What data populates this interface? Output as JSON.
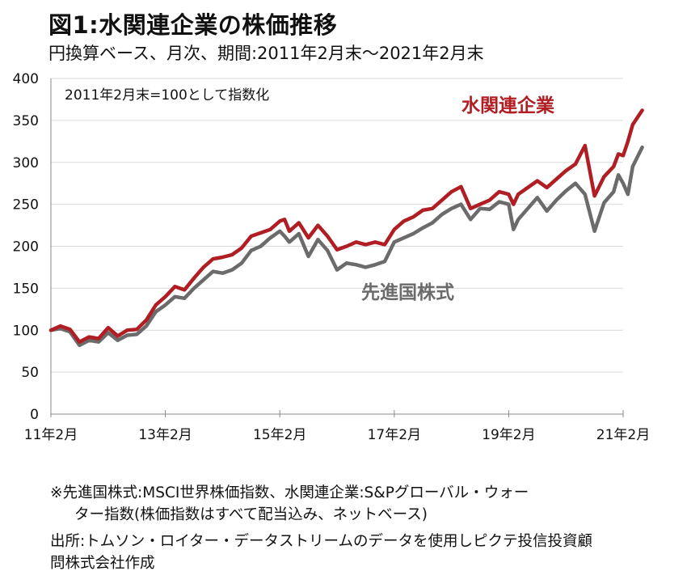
{
  "header": {
    "title": "図1:水関連企業の株価推移",
    "subtitle": "円換算ベース、月次、期間:2011年2月末～2021年2月末"
  },
  "chart_data": {
    "type": "line",
    "annotation": "2011年2月末=100として指数化",
    "ylim": [
      0,
      400
    ],
    "y_ticks": [
      "0",
      "50",
      "100",
      "150",
      "200",
      "250",
      "300",
      "350",
      "400"
    ],
    "x_range": [
      0,
      120
    ],
    "x_ticks": [
      {
        "month": 0,
        "label": "11年2月"
      },
      {
        "month": 24,
        "label": "13年2月"
      },
      {
        "month": 48,
        "label": "15年2月"
      },
      {
        "month": 72,
        "label": "17年2月"
      },
      {
        "month": 96,
        "label": "19年2月"
      },
      {
        "month": 120,
        "label": "21年2月"
      }
    ],
    "grid": "horizontal",
    "series": [
      {
        "name": "水関連企業",
        "color": "#b01e23",
        "points": [
          [
            0,
            100
          ],
          [
            2,
            105
          ],
          [
            4,
            101
          ],
          [
            6,
            86
          ],
          [
            8,
            92
          ],
          [
            10,
            90
          ],
          [
            12,
            103
          ],
          [
            14,
            93
          ],
          [
            16,
            100
          ],
          [
            18,
            101
          ],
          [
            20,
            112
          ],
          [
            22,
            130
          ],
          [
            24,
            140
          ],
          [
            26,
            152
          ],
          [
            28,
            148
          ],
          [
            30,
            162
          ],
          [
            32,
            175
          ],
          [
            34,
            185
          ],
          [
            36,
            187
          ],
          [
            38,
            190
          ],
          [
            40,
            198
          ],
          [
            42,
            212
          ],
          [
            44,
            216
          ],
          [
            46,
            220
          ],
          [
            48,
            230
          ],
          [
            49,
            232
          ],
          [
            50,
            218
          ],
          [
            52,
            228
          ],
          [
            54,
            210
          ],
          [
            56,
            225
          ],
          [
            58,
            212
          ],
          [
            60,
            196
          ],
          [
            62,
            200
          ],
          [
            64,
            205
          ],
          [
            66,
            202
          ],
          [
            68,
            205
          ],
          [
            70,
            202
          ],
          [
            72,
            220
          ],
          [
            74,
            230
          ],
          [
            76,
            235
          ],
          [
            78,
            243
          ],
          [
            80,
            245
          ],
          [
            82,
            255
          ],
          [
            84,
            265
          ],
          [
            86,
            271
          ],
          [
            88,
            245
          ],
          [
            90,
            250
          ],
          [
            92,
            255
          ],
          [
            94,
            265
          ],
          [
            96,
            262
          ],
          [
            97,
            250
          ],
          [
            98,
            262
          ],
          [
            100,
            270
          ],
          [
            102,
            278
          ],
          [
            104,
            270
          ],
          [
            106,
            280
          ],
          [
            108,
            290
          ],
          [
            110,
            298
          ],
          [
            112,
            320
          ],
          [
            114,
            260
          ],
          [
            116,
            283
          ],
          [
            118,
            295
          ],
          [
            119,
            310
          ],
          [
            120,
            308
          ],
          [
            121,
            325
          ],
          [
            122,
            345
          ],
          [
            124,
            362
          ]
        ]
      },
      {
        "name": "先進国株式",
        "color": "#6b6b6b",
        "points": [
          [
            0,
            100
          ],
          [
            2,
            102
          ],
          [
            4,
            98
          ],
          [
            6,
            82
          ],
          [
            8,
            88
          ],
          [
            10,
            86
          ],
          [
            12,
            97
          ],
          [
            14,
            88
          ],
          [
            16,
            94
          ],
          [
            18,
            95
          ],
          [
            20,
            105
          ],
          [
            22,
            122
          ],
          [
            24,
            130
          ],
          [
            26,
            140
          ],
          [
            28,
            138
          ],
          [
            30,
            150
          ],
          [
            32,
            160
          ],
          [
            34,
            170
          ],
          [
            36,
            168
          ],
          [
            38,
            172
          ],
          [
            40,
            180
          ],
          [
            42,
            195
          ],
          [
            44,
            200
          ],
          [
            46,
            210
          ],
          [
            48,
            218
          ],
          [
            49,
            212
          ],
          [
            50,
            205
          ],
          [
            52,
            215
          ],
          [
            54,
            188
          ],
          [
            56,
            208
          ],
          [
            58,
            195
          ],
          [
            60,
            172
          ],
          [
            62,
            180
          ],
          [
            64,
            178
          ],
          [
            66,
            175
          ],
          [
            68,
            178
          ],
          [
            70,
            182
          ],
          [
            72,
            205
          ],
          [
            74,
            210
          ],
          [
            76,
            215
          ],
          [
            78,
            222
          ],
          [
            80,
            228
          ],
          [
            82,
            238
          ],
          [
            84,
            245
          ],
          [
            86,
            250
          ],
          [
            88,
            232
          ],
          [
            90,
            245
          ],
          [
            92,
            244
          ],
          [
            94,
            253
          ],
          [
            96,
            250
          ],
          [
            97,
            220
          ],
          [
            98,
            232
          ],
          [
            100,
            245
          ],
          [
            102,
            258
          ],
          [
            104,
            242
          ],
          [
            106,
            255
          ],
          [
            108,
            266
          ],
          [
            110,
            275
          ],
          [
            112,
            262
          ],
          [
            114,
            218
          ],
          [
            116,
            252
          ],
          [
            118,
            265
          ],
          [
            119,
            285
          ],
          [
            120,
            275
          ],
          [
            121,
            262
          ],
          [
            122,
            295
          ],
          [
            124,
            318
          ]
        ]
      }
    ],
    "labels": {
      "water_series": "水関連企業",
      "world_series": "先進国株式"
    }
  },
  "footnotes": {
    "line1": "※先進国株式:MSCI世界株価指数、水関連企業:S&Pグローバル・ウォー",
    "line2": "ター指数(株価指数はすべて配当込み、ネットベース)",
    "line3": "出所:トムソン・ロイター・データストリームのデータを使用しピクテ投信投資顧",
    "line4": "問株式会社作成"
  }
}
